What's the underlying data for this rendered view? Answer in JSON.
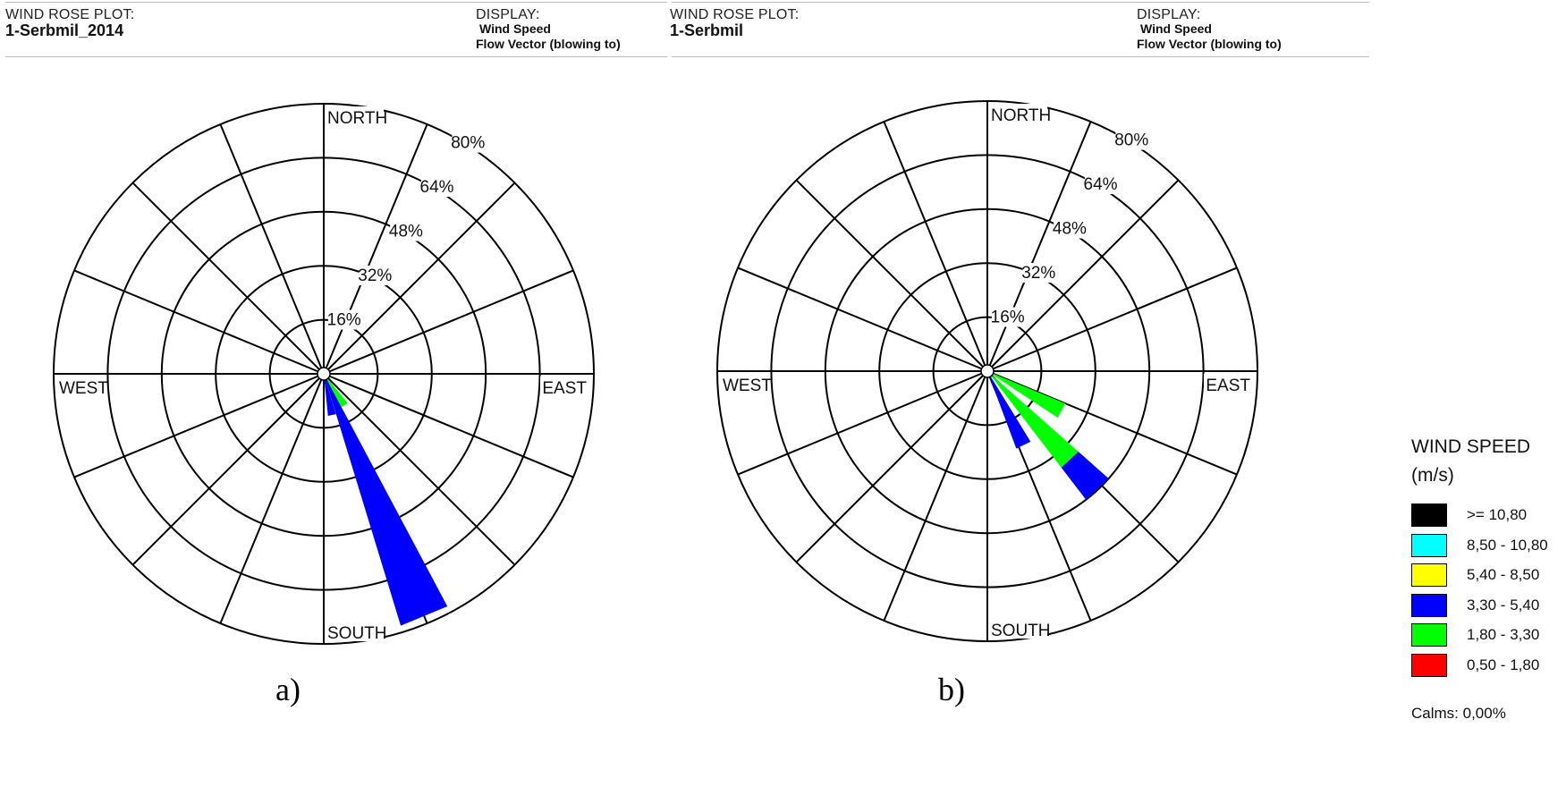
{
  "panels": [
    {
      "header_label": "WIND ROSE PLOT:",
      "site": "1-Serbmil_2014",
      "display_label": "DISPLAY:",
      "display_value": "Wind Speed",
      "display_mode": "Flow Vector (blowing to)",
      "caption": "a)"
    },
    {
      "header_label": "WIND ROSE PLOT:",
      "site": "1-Serbmil",
      "display_label": "DISPLAY:",
      "display_value": "Wind Speed",
      "display_mode": "Flow Vector (blowing to)",
      "caption": "b)"
    }
  ],
  "chart_data": [
    {
      "type": "wind-rose",
      "direction_labels": [
        "NORTH",
        "EAST",
        "SOUTH",
        "WEST"
      ],
      "radial_ticks": [
        16,
        32,
        48,
        64,
        80
      ],
      "radial_tick_labels": [
        "16%",
        "32%",
        "48%",
        "64%",
        "80%"
      ],
      "radial_max": 80,
      "sectors": 16,
      "sector_half_width_deg": 5.5,
      "petals": [
        {
          "direction_deg": 168.75,
          "segments": [
            {
              "bin": "3,30 - 5,40",
              "from": 0,
              "to": 12.5
            }
          ]
        },
        {
          "direction_deg": 146.25,
          "segments": [
            {
              "bin": "1,80 - 3,30",
              "from": 0,
              "to": 11.2
            }
          ]
        },
        {
          "direction_deg": 157.5,
          "segments": [
            {
              "bin": "3,30 - 5,40",
              "from": 0,
              "to": 78
            }
          ]
        }
      ]
    },
    {
      "type": "wind-rose",
      "direction_labels": [
        "NORTH",
        "EAST",
        "SOUTH",
        "WEST"
      ],
      "radial_ticks": [
        16,
        32,
        48,
        64,
        80
      ],
      "radial_tick_labels": [
        "16%",
        "32%",
        "48%",
        "64%",
        "80%"
      ],
      "radial_max": 80,
      "sectors": 16,
      "sector_half_width_deg": 5.5,
      "petals": [
        {
          "direction_deg": 118,
          "segments": [
            {
              "bin": "1,80 - 3,30",
              "from": 0,
              "to": 25
            }
          ]
        },
        {
          "direction_deg": 137,
          "segments": [
            {
              "bin": "1,80 - 3,30",
              "from": 0,
              "to": 36
            },
            {
              "bin": "3,30 - 5,40",
              "from": 36,
              "to": 48
            }
          ]
        },
        {
          "direction_deg": 154,
          "segments": [
            {
              "bin": "3,30 - 5,40",
              "from": 0,
              "to": 24.5
            }
          ]
        }
      ]
    }
  ],
  "legend": {
    "title_line1": "WIND SPEED",
    "title_line2": "(m/s)",
    "items": [
      {
        "label": ">= 10,80",
        "color": "#000000"
      },
      {
        "label": "8,50 - 10,80",
        "color": "#00FFFF"
      },
      {
        "label": "5,40 - 8,50",
        "color": "#FFFF00"
      },
      {
        "label": "3,30 - 5,40",
        "color": "#0000FF"
      },
      {
        "label": "1,80 - 3,30",
        "color": "#00FF00"
      },
      {
        "label": "0,50 - 1,80",
        "color": "#FF0000"
      }
    ],
    "calms": "Calms: 0,00%"
  }
}
